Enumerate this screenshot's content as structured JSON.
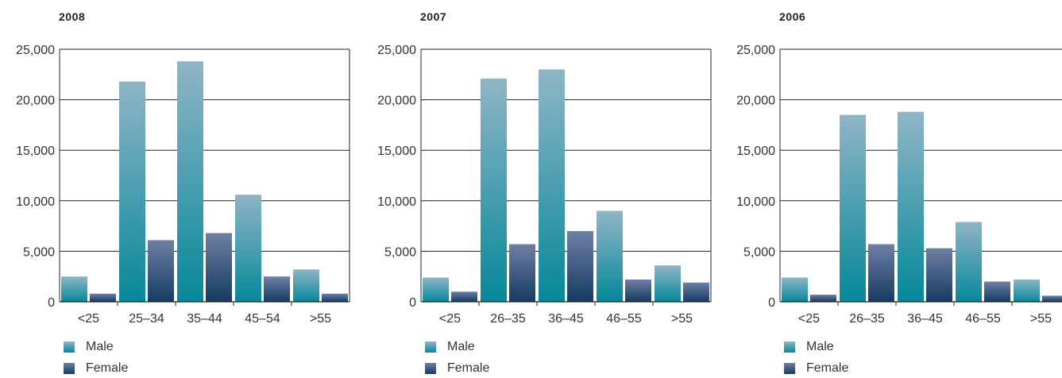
{
  "colors": {
    "male_top": "#8fb5c6",
    "male_bottom": "#05889a",
    "female_top": "#6f7fa4",
    "female_bottom": "#143b62",
    "gridline": "#222222"
  },
  "chart_data": [
    {
      "type": "bar",
      "title": "2008",
      "categories": [
        "<25",
        "25–34",
        "35–44",
        "45–54",
        ">55"
      ],
      "series": [
        {
          "name": "Male",
          "values": [
            2500,
            21800,
            23800,
            10600,
            3200
          ]
        },
        {
          "name": "Female",
          "values": [
            800,
            6100,
            6800,
            2500,
            800
          ]
        }
      ],
      "ylim": [
        0,
        25000
      ],
      "yticks": [
        "0",
        "5,000",
        "10,000",
        "15,000",
        "20,000",
        "25,000"
      ],
      "grid": true,
      "legend": "bottom-left"
    },
    {
      "type": "bar",
      "title": "2007",
      "categories": [
        "<25",
        "26–35",
        "36–45",
        "46–55",
        ">55"
      ],
      "series": [
        {
          "name": "Male",
          "values": [
            2400,
            22100,
            23000,
            9000,
            3600
          ]
        },
        {
          "name": "Female",
          "values": [
            1000,
            5700,
            7000,
            2200,
            1900
          ]
        }
      ],
      "ylim": [
        0,
        25000
      ],
      "yticks": [
        "0",
        "5,000",
        "10,000",
        "15,000",
        "20,000",
        "25,000"
      ],
      "grid": true,
      "legend": "bottom-left"
    },
    {
      "type": "bar",
      "title": "2006",
      "categories": [
        "<25",
        "26–35",
        "36–45",
        "46–55",
        ">55"
      ],
      "series": [
        {
          "name": "Male",
          "values": [
            2400,
            18500,
            18800,
            7900,
            2200
          ]
        },
        {
          "name": "Female",
          "values": [
            700,
            5700,
            5300,
            2000,
            600
          ]
        }
      ],
      "ylim": [
        0,
        25000
      ],
      "yticks": [
        "0",
        "5,000",
        "10,000",
        "15,000",
        "20,000",
        "25,000"
      ],
      "grid": true,
      "legend": "bottom-left"
    }
  ]
}
